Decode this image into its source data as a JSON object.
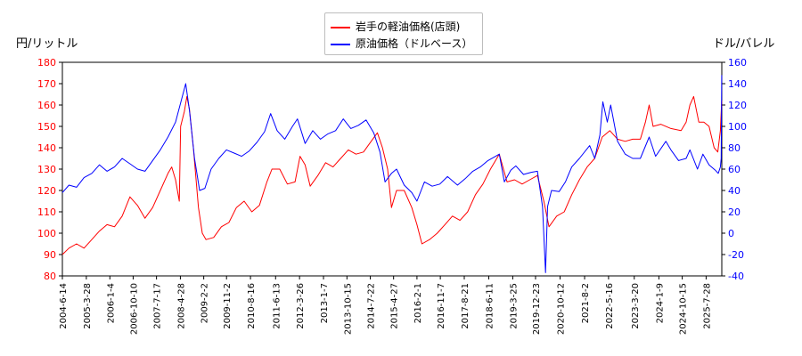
{
  "chart_data": {
    "type": "line",
    "xlabel": "",
    "left_axis": {
      "label": "円/リットル",
      "ylim": [
        80,
        180
      ],
      "ticks": [
        80,
        90,
        100,
        110,
        120,
        130,
        140,
        150,
        160,
        170,
        180
      ],
      "color": "#ff0000"
    },
    "right_axis": {
      "label": "ドル/バレル",
      "ylim": [
        -40,
        160
      ],
      "ticks": [
        -40,
        -20,
        0,
        20,
        40,
        60,
        80,
        100,
        120,
        140,
        160
      ],
      "color": "#0000ff"
    },
    "x_range": [
      "2004-06-14",
      "2026-02-01"
    ],
    "x_ticks": [
      "2004-6-14",
      "2005-3-28",
      "2006-1-4",
      "2006-10-10",
      "2007-7-17",
      "2008-4-28",
      "2009-2-2",
      "2009-11-2",
      "2010-8-16",
      "2011-6-13",
      "2012-3-26",
      "2013-1-7",
      "2013-10-15",
      "2014-7-22",
      "2015-4-27",
      "2016-2-1",
      "2016-11-7",
      "2017-8-21",
      "2018-6-11",
      "2019-3-25",
      "2019-12-23",
      "2020-10-12",
      "2021-8-2",
      "2022-5-16",
      "2023-3-20",
      "2024-1-9",
      "2024-10-15",
      "2025-7-28"
    ],
    "legend_position": "top-center",
    "grid": false,
    "series": [
      {
        "name": "岩手の軽油価格(店頭)",
        "axis": "left",
        "color": "#ff0000",
        "points": [
          [
            "2004-06-14",
            90
          ],
          [
            "2004-09-01",
            93
          ],
          [
            "2004-12-01",
            95
          ],
          [
            "2005-03-01",
            93
          ],
          [
            "2005-06-01",
            97
          ],
          [
            "2005-09-01",
            101
          ],
          [
            "2005-12-01",
            104
          ],
          [
            "2006-03-01",
            103
          ],
          [
            "2006-06-01",
            108
          ],
          [
            "2006-09-01",
            117
          ],
          [
            "2006-12-01",
            113
          ],
          [
            "2007-03-01",
            107
          ],
          [
            "2007-06-01",
            112
          ],
          [
            "2007-09-01",
            120
          ],
          [
            "2007-12-01",
            128
          ],
          [
            "2008-01-15",
            131
          ],
          [
            "2008-03-01",
            125
          ],
          [
            "2008-04-15",
            115
          ],
          [
            "2008-05-01",
            150
          ],
          [
            "2008-06-15",
            157
          ],
          [
            "2008-07-15",
            164
          ],
          [
            "2008-08-15",
            158
          ],
          [
            "2008-10-01",
            140
          ],
          [
            "2008-12-01",
            112
          ],
          [
            "2009-01-15",
            100
          ],
          [
            "2009-03-01",
            97
          ],
          [
            "2009-06-01",
            98
          ],
          [
            "2009-09-01",
            103
          ],
          [
            "2009-12-01",
            105
          ],
          [
            "2010-03-01",
            112
          ],
          [
            "2010-06-01",
            115
          ],
          [
            "2010-09-01",
            110
          ],
          [
            "2010-12-01",
            113
          ],
          [
            "2011-03-01",
            124
          ],
          [
            "2011-05-01",
            130
          ],
          [
            "2011-08-01",
            130
          ],
          [
            "2011-11-01",
            123
          ],
          [
            "2012-02-01",
            124
          ],
          [
            "2012-04-01",
            136
          ],
          [
            "2012-06-01",
            132
          ],
          [
            "2012-08-01",
            122
          ],
          [
            "2012-11-01",
            127
          ],
          [
            "2013-02-01",
            133
          ],
          [
            "2013-05-01",
            131
          ],
          [
            "2013-08-01",
            135
          ],
          [
            "2013-11-01",
            139
          ],
          [
            "2014-02-01",
            137
          ],
          [
            "2014-05-01",
            138
          ],
          [
            "2014-08-01",
            143
          ],
          [
            "2014-10-15",
            147
          ],
          [
            "2014-12-15",
            140
          ],
          [
            "2015-02-15",
            130
          ],
          [
            "2015-04-01",
            112
          ],
          [
            "2015-06-01",
            120
          ],
          [
            "2015-09-01",
            120
          ],
          [
            "2015-12-01",
            112
          ],
          [
            "2016-02-01",
            104
          ],
          [
            "2016-04-01",
            95
          ],
          [
            "2016-07-01",
            97
          ],
          [
            "2016-10-01",
            100
          ],
          [
            "2017-01-01",
            104
          ],
          [
            "2017-04-01",
            108
          ],
          [
            "2017-07-01",
            106
          ],
          [
            "2017-10-01",
            110
          ],
          [
            "2018-01-01",
            118
          ],
          [
            "2018-04-01",
            123
          ],
          [
            "2018-07-01",
            130
          ],
          [
            "2018-10-15",
            137
          ],
          [
            "2019-01-15",
            124
          ],
          [
            "2019-04-15",
            125
          ],
          [
            "2019-07-15",
            123
          ],
          [
            "2019-10-15",
            125
          ],
          [
            "2020-01-15",
            127
          ],
          [
            "2020-04-01",
            115
          ],
          [
            "2020-06-01",
            103
          ],
          [
            "2020-09-01",
            108
          ],
          [
            "2020-12-01",
            110
          ],
          [
            "2021-03-01",
            118
          ],
          [
            "2021-06-01",
            125
          ],
          [
            "2021-09-01",
            131
          ],
          [
            "2021-12-01",
            135
          ],
          [
            "2022-03-01",
            145
          ],
          [
            "2022-06-01",
            148
          ],
          [
            "2022-09-01",
            144
          ],
          [
            "2022-12-01",
            143
          ],
          [
            "2023-03-01",
            144
          ],
          [
            "2023-06-01",
            144
          ],
          [
            "2023-08-01",
            152
          ],
          [
            "2023-09-15",
            160
          ],
          [
            "2023-11-01",
            150
          ],
          [
            "2024-02-01",
            151
          ],
          [
            "2024-06-01",
            149
          ],
          [
            "2024-10-01",
            148
          ],
          [
            "2024-12-01",
            152
          ],
          [
            "2025-01-15",
            160
          ],
          [
            "2025-03-01",
            164
          ],
          [
            "2025-05-01",
            152
          ],
          [
            "2025-07-01",
            152
          ],
          [
            "2025-09-01",
            150
          ],
          [
            "2025-11-01",
            140
          ],
          [
            "2025-12-15",
            138
          ],
          [
            "2026-01-15",
            148
          ],
          [
            "2026-01-31",
            162
          ]
        ]
      },
      {
        "name": "原油価格（ドルベース）",
        "axis": "right",
        "color": "#0000ff",
        "points": [
          [
            "2004-06-14",
            38
          ],
          [
            "2004-09-01",
            45
          ],
          [
            "2004-12-01",
            43
          ],
          [
            "2005-03-01",
            52
          ],
          [
            "2005-06-01",
            56
          ],
          [
            "2005-09-01",
            64
          ],
          [
            "2005-12-01",
            58
          ],
          [
            "2006-03-01",
            62
          ],
          [
            "2006-06-01",
            70
          ],
          [
            "2006-09-01",
            65
          ],
          [
            "2006-12-01",
            60
          ],
          [
            "2007-03-01",
            58
          ],
          [
            "2007-06-01",
            68
          ],
          [
            "2007-09-01",
            78
          ],
          [
            "2007-12-01",
            90
          ],
          [
            "2008-03-01",
            104
          ],
          [
            "2008-05-01",
            122
          ],
          [
            "2008-07-01",
            140
          ],
          [
            "2008-08-15",
            115
          ],
          [
            "2008-10-15",
            70
          ],
          [
            "2008-12-15",
            40
          ],
          [
            "2009-02-15",
            42
          ],
          [
            "2009-05-01",
            60
          ],
          [
            "2009-08-01",
            70
          ],
          [
            "2009-11-01",
            78
          ],
          [
            "2010-02-01",
            75
          ],
          [
            "2010-05-01",
            72
          ],
          [
            "2010-08-01",
            77
          ],
          [
            "2010-11-01",
            85
          ],
          [
            "2011-02-01",
            95
          ],
          [
            "2011-04-15",
            112
          ],
          [
            "2011-07-01",
            96
          ],
          [
            "2011-10-01",
            88
          ],
          [
            "2012-01-01",
            100
          ],
          [
            "2012-03-01",
            107
          ],
          [
            "2012-06-01",
            84
          ],
          [
            "2012-09-01",
            96
          ],
          [
            "2012-12-01",
            88
          ],
          [
            "2013-03-01",
            93
          ],
          [
            "2013-06-01",
            96
          ],
          [
            "2013-09-01",
            107
          ],
          [
            "2013-12-01",
            98
          ],
          [
            "2014-03-01",
            101
          ],
          [
            "2014-06-01",
            106
          ],
          [
            "2014-09-01",
            94
          ],
          [
            "2014-11-15",
            76
          ],
          [
            "2015-01-15",
            48
          ],
          [
            "2015-04-01",
            56
          ],
          [
            "2015-06-01",
            60
          ],
          [
            "2015-09-01",
            45
          ],
          [
            "2015-12-01",
            38
          ],
          [
            "2016-02-01",
            30
          ],
          [
            "2016-05-01",
            48
          ],
          [
            "2016-08-01",
            44
          ],
          [
            "2016-11-01",
            46
          ],
          [
            "2017-02-01",
            53
          ],
          [
            "2017-06-01",
            45
          ],
          [
            "2017-09-01",
            51
          ],
          [
            "2017-12-01",
            58
          ],
          [
            "2018-03-01",
            62
          ],
          [
            "2018-06-01",
            68
          ],
          [
            "2018-09-01",
            72
          ],
          [
            "2018-10-15",
            74
          ],
          [
            "2018-12-15",
            48
          ],
          [
            "2019-03-01",
            59
          ],
          [
            "2019-05-01",
            63
          ],
          [
            "2019-08-01",
            55
          ],
          [
            "2019-11-01",
            57
          ],
          [
            "2020-01-15",
            58
          ],
          [
            "2020-03-15",
            25
          ],
          [
            "2020-04-21",
            -37
          ],
          [
            "2020-05-15",
            25
          ],
          [
            "2020-07-01",
            40
          ],
          [
            "2020-10-01",
            39
          ],
          [
            "2020-12-15",
            48
          ],
          [
            "2021-03-01",
            62
          ],
          [
            "2021-06-01",
            70
          ],
          [
            "2021-10-01",
            82
          ],
          [
            "2021-12-01",
            70
          ],
          [
            "2022-02-01",
            92
          ],
          [
            "2022-03-08",
            123
          ],
          [
            "2022-05-01",
            104
          ],
          [
            "2022-06-10",
            120
          ],
          [
            "2022-09-01",
            86
          ],
          [
            "2022-12-01",
            74
          ],
          [
            "2023-03-01",
            70
          ],
          [
            "2023-06-01",
            70
          ],
          [
            "2023-09-15",
            90
          ],
          [
            "2023-12-01",
            72
          ],
          [
            "2024-04-01",
            86
          ],
          [
            "2024-06-01",
            78
          ],
          [
            "2024-09-01",
            68
          ],
          [
            "2024-12-01",
            70
          ],
          [
            "2025-01-15",
            78
          ],
          [
            "2025-04-15",
            60
          ],
          [
            "2025-06-20",
            74
          ],
          [
            "2025-09-01",
            64
          ],
          [
            "2025-11-15",
            59
          ],
          [
            "2025-12-20",
            56
          ],
          [
            "2026-01-15",
            62
          ],
          [
            "2026-01-25",
            70
          ],
          [
            "2026-01-31",
            148
          ]
        ]
      }
    ]
  }
}
